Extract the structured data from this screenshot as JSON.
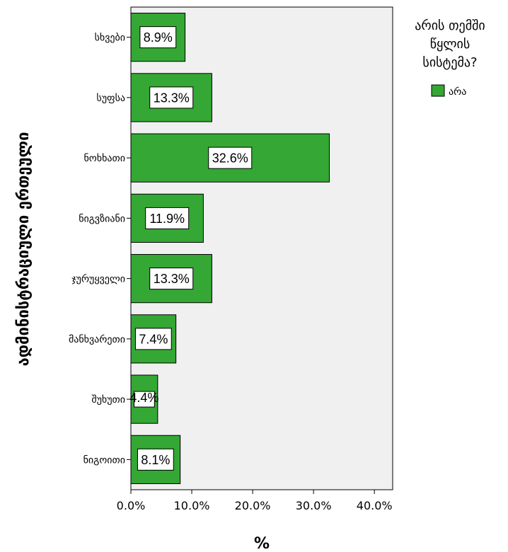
{
  "chart_data": {
    "type": "bar",
    "orientation": "horizontal",
    "categories": [
      "სხვები",
      "სუფსა",
      "ნოხხათი",
      "ნიგვზიანი",
      "ჯურუყველი",
      "მანხვარეთი",
      "შუხუთი",
      "ნიგოითი"
    ],
    "values": [
      8.9,
      13.3,
      32.6,
      11.9,
      13.3,
      7.4,
      4.4,
      8.1
    ],
    "value_labels": [
      "8.9%",
      "13.3%",
      "32.6%",
      "11.9%",
      "13.3%",
      "7.4%",
      "4.4%",
      "8.1%"
    ],
    "xlabel": "%",
    "ylabel": "ადმინისტრაციული ერთეული",
    "xlim": [
      0,
      43
    ],
    "x_ticks": [
      0,
      10,
      20,
      30,
      40
    ],
    "x_tick_labels": [
      "0.0%",
      "10.0%",
      "20.0%",
      "30.0%",
      "40.0%"
    ],
    "grid": false,
    "legend": {
      "title_lines": [
        "არის თემში",
        "წყლის",
        "სისტემა?"
      ],
      "entries": [
        {
          "name": "არა",
          "color": "#34a734"
        }
      ],
      "placement": "right"
    },
    "colors": {
      "bar": "#34a734",
      "bar_border": "#000000",
      "plot_background": "#f0f0f0",
      "label_background": "#ffffff"
    }
  }
}
